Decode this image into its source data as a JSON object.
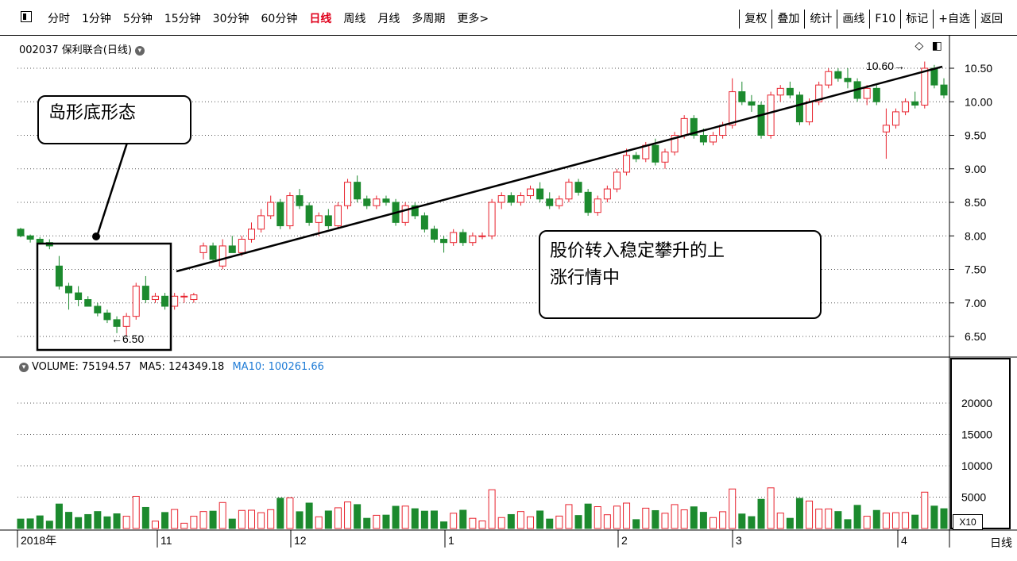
{
  "toolbar": {
    "periods": [
      "分时",
      "1分钟",
      "5分钟",
      "15分钟",
      "30分钟",
      "60分钟",
      "日线",
      "周线",
      "月线",
      "多周期",
      "更多>"
    ],
    "active_period": "日线",
    "right_buttons": [
      "复权",
      "叠加",
      "统计",
      "画线",
      "F10",
      "标记",
      "+自选",
      "返回"
    ]
  },
  "stock_title": "002037 保利联合(日线)",
  "price_axis": [
    "10.50",
    "10.00",
    "9.50",
    "9.00",
    "8.50",
    "8.00",
    "7.50",
    "7.00",
    "6.50"
  ],
  "volume_axis": [
    "20000",
    "15000",
    "10000",
    "5000"
  ],
  "volume_multiplier": "X10",
  "volume_line": {
    "label": "VOLUME: 75194.57",
    "ma5": "MA5: 124349.18",
    "ma10": "MA10: 100261.66"
  },
  "x_axis": [
    "2018年",
    "11",
    "12",
    "1",
    "2",
    "3",
    "4"
  ],
  "bottom_right": "日线",
  "annotations": {
    "high_label": "10.60",
    "low_label": "6.50",
    "island_callout": "岛形底形态",
    "trend_callout_line1": "股价转入稳定攀升的上",
    "trend_callout_line2": "涨行情中"
  },
  "colors": {
    "up": "#e8232e",
    "down": "#1c8a2e",
    "ma10": "#1e7bd6",
    "active": "#e0001b"
  },
  "chart_data": {
    "type": "candlestick",
    "candles": [
      [
        8.1,
        8.12,
        7.98,
        8.0
      ],
      [
        8.0,
        8.02,
        7.9,
        7.95
      ],
      [
        7.95,
        7.98,
        7.87,
        7.9
      ],
      [
        7.9,
        7.95,
        7.8,
        7.85
      ],
      [
        7.55,
        7.7,
        7.2,
        7.25
      ],
      [
        7.25,
        7.3,
        6.9,
        7.15
      ],
      [
        7.15,
        7.25,
        6.95,
        7.05
      ],
      [
        7.05,
        7.1,
        6.95,
        6.95
      ],
      [
        6.95,
        7.0,
        6.8,
        6.85
      ],
      [
        6.85,
        6.9,
        6.7,
        6.75
      ],
      [
        6.75,
        6.8,
        6.55,
        6.65
      ],
      [
        6.65,
        6.85,
        6.5,
        6.8
      ],
      [
        6.8,
        7.3,
        6.75,
        7.25
      ],
      [
        7.25,
        7.4,
        7.0,
        7.05
      ],
      [
        7.05,
        7.15,
        7.0,
        7.1
      ],
      [
        7.1,
        7.15,
        6.9,
        6.95
      ],
      [
        6.95,
        7.15,
        6.9,
        7.1
      ],
      [
        7.1,
        7.15,
        7.0,
        7.1
      ],
      [
        7.05,
        7.15,
        7.0,
        7.12
      ],
      [
        7.75,
        7.9,
        7.65,
        7.85
      ],
      [
        7.85,
        7.9,
        7.6,
        7.65
      ],
      [
        7.55,
        7.95,
        7.5,
        7.85
      ],
      [
        7.85,
        8.0,
        7.75,
        7.75
      ],
      [
        7.75,
        8.0,
        7.7,
        7.95
      ],
      [
        7.95,
        8.2,
        7.9,
        8.1
      ],
      [
        8.1,
        8.4,
        8.05,
        8.3
      ],
      [
        8.3,
        8.6,
        8.25,
        8.5
      ],
      [
        8.5,
        8.55,
        8.1,
        8.15
      ],
      [
        8.15,
        8.65,
        8.1,
        8.6
      ],
      [
        8.6,
        8.7,
        8.4,
        8.45
      ],
      [
        8.45,
        8.5,
        8.15,
        8.2
      ],
      [
        8.2,
        8.35,
        8.0,
        8.3
      ],
      [
        8.3,
        8.4,
        8.1,
        8.15
      ],
      [
        8.15,
        8.5,
        8.1,
        8.45
      ],
      [
        8.45,
        8.85,
        8.4,
        8.8
      ],
      [
        8.8,
        8.9,
        8.5,
        8.55
      ],
      [
        8.55,
        8.6,
        8.4,
        8.45
      ],
      [
        8.45,
        8.6,
        8.4,
        8.55
      ],
      [
        8.55,
        8.6,
        8.45,
        8.5
      ],
      [
        8.5,
        8.55,
        8.15,
        8.2
      ],
      [
        8.2,
        8.5,
        8.15,
        8.45
      ],
      [
        8.45,
        8.5,
        8.25,
        8.3
      ],
      [
        8.3,
        8.35,
        8.05,
        8.1
      ],
      [
        8.1,
        8.15,
        7.9,
        7.95
      ],
      [
        7.95,
        8.0,
        7.75,
        7.9
      ],
      [
        7.9,
        8.1,
        7.85,
        8.05
      ],
      [
        8.05,
        8.1,
        7.85,
        7.9
      ],
      [
        7.9,
        8.05,
        7.85,
        8.0
      ],
      [
        8.0,
        8.05,
        7.95,
        8.0
      ],
      [
        8.0,
        8.55,
        7.95,
        8.5
      ],
      [
        8.5,
        8.65,
        8.4,
        8.6
      ],
      [
        8.6,
        8.65,
        8.45,
        8.5
      ],
      [
        8.5,
        8.65,
        8.45,
        8.6
      ],
      [
        8.6,
        8.75,
        8.55,
        8.7
      ],
      [
        8.7,
        8.8,
        8.5,
        8.55
      ],
      [
        8.55,
        8.65,
        8.4,
        8.45
      ],
      [
        8.45,
        8.6,
        8.4,
        8.55
      ],
      [
        8.55,
        8.85,
        8.5,
        8.8
      ],
      [
        8.8,
        8.85,
        8.6,
        8.65
      ],
      [
        8.65,
        8.7,
        8.3,
        8.35
      ],
      [
        8.35,
        8.6,
        8.3,
        8.55
      ],
      [
        8.55,
        8.75,
        8.5,
        8.7
      ],
      [
        8.7,
        9.0,
        8.65,
        8.95
      ],
      [
        8.95,
        9.3,
        8.9,
        9.2
      ],
      [
        9.2,
        9.25,
        9.1,
        9.15
      ],
      [
        9.15,
        9.4,
        9.1,
        9.35
      ],
      [
        9.35,
        9.45,
        9.05,
        9.1
      ],
      [
        9.1,
        9.3,
        9.0,
        9.25
      ],
      [
        9.25,
        9.55,
        9.2,
        9.5
      ],
      [
        9.5,
        9.8,
        9.45,
        9.75
      ],
      [
        9.75,
        9.8,
        9.45,
        9.5
      ],
      [
        9.5,
        9.6,
        9.35,
        9.4
      ],
      [
        9.4,
        9.55,
        9.35,
        9.5
      ],
      [
        9.5,
        9.7,
        9.45,
        9.65
      ],
      [
        9.65,
        10.35,
        9.6,
        10.15
      ],
      [
        10.15,
        10.3,
        9.95,
        10.0
      ],
      [
        10.0,
        10.1,
        9.85,
        9.95
      ],
      [
        9.95,
        10.0,
        9.45,
        9.5
      ],
      [
        9.5,
        10.15,
        9.45,
        10.1
      ],
      [
        10.1,
        10.25,
        10.0,
        10.2
      ],
      [
        10.2,
        10.3,
        10.05,
        10.1
      ],
      [
        10.1,
        10.15,
        9.65,
        9.7
      ],
      [
        9.7,
        10.05,
        9.65,
        10.0
      ],
      [
        10.0,
        10.3,
        9.95,
        10.25
      ],
      [
        10.25,
        10.5,
        10.2,
        10.45
      ],
      [
        10.45,
        10.5,
        10.3,
        10.35
      ],
      [
        10.35,
        10.5,
        10.2,
        10.3
      ],
      [
        10.3,
        10.35,
        10.0,
        10.05
      ],
      [
        10.05,
        10.25,
        9.95,
        10.2
      ],
      [
        10.2,
        10.25,
        9.95,
        10.0
      ],
      [
        9.55,
        9.9,
        9.15,
        9.65
      ],
      [
        9.65,
        9.9,
        9.6,
        9.85
      ],
      [
        9.85,
        10.05,
        9.8,
        10.0
      ],
      [
        10.0,
        10.15,
        9.9,
        9.95
      ],
      [
        9.95,
        10.6,
        9.9,
        10.5
      ],
      [
        10.5,
        10.55,
        10.2,
        10.25
      ],
      [
        10.25,
        10.35,
        10.05,
        10.1
      ]
    ]
  }
}
